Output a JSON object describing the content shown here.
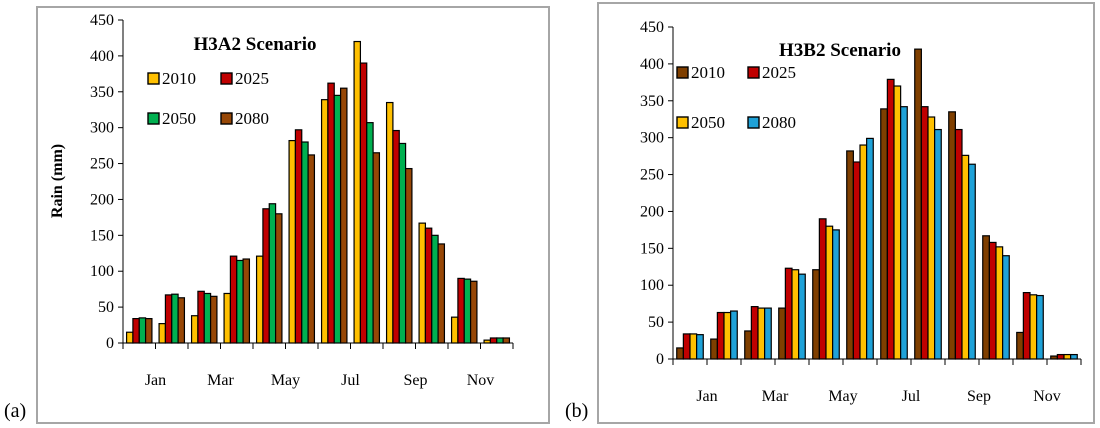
{
  "panels": {
    "a": {
      "label": "(a)"
    },
    "b": {
      "label": "(b)"
    }
  },
  "chart_data": [
    {
      "type": "bar",
      "title": "H3A2 Scenario",
      "ylabel": "Rain (mm)",
      "xlabel": "",
      "ylim": [
        0,
        450
      ],
      "yticks": [
        0,
        50,
        100,
        150,
        200,
        250,
        300,
        350,
        400,
        450
      ],
      "categories": [
        "Jan",
        "Feb",
        "Mar",
        "Apr",
        "May",
        "Jun",
        "Jul",
        "Aug",
        "Sep",
        "Oct",
        "Nov",
        "Dec"
      ],
      "tick_labels": [
        "Jan",
        "",
        "Mar",
        "",
        "May",
        "",
        "Jul",
        "",
        "Sep",
        "",
        "Nov",
        ""
      ],
      "legend_position": "top-left",
      "grid": false,
      "series": [
        {
          "name": "2010",
          "color": "#FFC000",
          "values": [
            15,
            27,
            38,
            69,
            121,
            282,
            339,
            420,
            335,
            167,
            36,
            4
          ]
        },
        {
          "name": "2025",
          "color": "#C00000",
          "values": [
            34,
            67,
            72,
            121,
            187,
            297,
            362,
            390,
            296,
            160,
            90,
            7
          ]
        },
        {
          "name": "2050",
          "color": "#00B050",
          "values": [
            35,
            68,
            69,
            115,
            194,
            280,
            345,
            307,
            278,
            150,
            89,
            7
          ]
        },
        {
          "name": "2080",
          "color": "#974706",
          "values": [
            34,
            63,
            65,
            117,
            180,
            262,
            355,
            265,
            243,
            138,
            86,
            7
          ]
        }
      ]
    },
    {
      "type": "bar",
      "title": "H3B2 Scenario",
      "ylabel": "",
      "xlabel": "",
      "ylim": [
        0,
        450
      ],
      "yticks": [
        0,
        50,
        100,
        150,
        200,
        250,
        300,
        350,
        400,
        450
      ],
      "categories": [
        "Jan",
        "Feb",
        "Mar",
        "Apr",
        "May",
        "Jun",
        "Jul",
        "Aug",
        "Sep",
        "Oct",
        "Nov",
        "Dec"
      ],
      "tick_labels": [
        "Jan",
        "",
        "Mar",
        "",
        "May",
        "",
        "Jul",
        "",
        "Sep",
        "",
        "Nov",
        ""
      ],
      "legend_position": "top-left",
      "grid": false,
      "series": [
        {
          "name": "2010",
          "color": "#7F3F00",
          "values": [
            15,
            27,
            38,
            69,
            121,
            282,
            339,
            420,
            335,
            167,
            36,
            4
          ]
        },
        {
          "name": "2025",
          "color": "#C00000",
          "values": [
            34,
            63,
            71,
            123,
            190,
            267,
            379,
            342,
            311,
            158,
            90,
            6
          ]
        },
        {
          "name": "2050",
          "color": "#FFC000",
          "values": [
            34,
            63,
            69,
            121,
            180,
            290,
            370,
            328,
            276,
            152,
            87,
            6
          ]
        },
        {
          "name": "2080",
          "color": "#1FA2D8",
          "values": [
            33,
            65,
            69,
            115,
            175,
            299,
            342,
            311,
            264,
            140,
            86,
            6
          ]
        }
      ]
    }
  ]
}
